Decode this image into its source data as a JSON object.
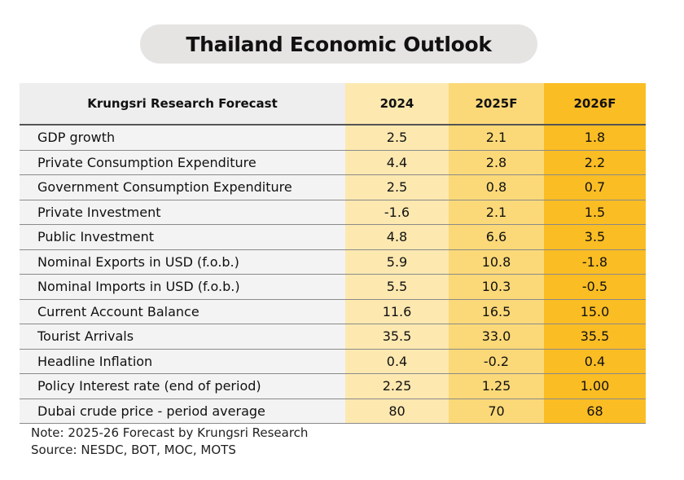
{
  "title": "Thailand Economic Outlook",
  "chart_data": {
    "type": "table",
    "columns": [
      "Krungsri Research Forecast",
      "2024",
      "2025F",
      "2026F"
    ],
    "rows": [
      [
        "GDP growth",
        "2.5",
        "2.1",
        "1.8"
      ],
      [
        "Private Consumption Expenditure",
        "4.4",
        "2.8",
        "2.2"
      ],
      [
        "Government Consumption Expenditure",
        "2.5",
        "0.8",
        "0.7"
      ],
      [
        "Private Investment",
        "-1.6",
        "2.1",
        "1.5"
      ],
      [
        "Public Investment",
        "4.8",
        "6.6",
        "3.5"
      ],
      [
        "Nominal Exports in USD (f.o.b.)",
        "5.9",
        "10.8",
        "-1.8"
      ],
      [
        "Nominal Imports in USD (f.o.b.)",
        "5.5",
        "10.3",
        "-0.5"
      ],
      [
        "Current Account Balance",
        "11.6",
        "16.5",
        "15.0"
      ],
      [
        "Tourist Arrivals",
        "35.5",
        "33.0",
        "35.5"
      ],
      [
        "Headline Inflation",
        "0.4",
        "-0.2",
        "0.4"
      ],
      [
        "Policy Interest rate (end of period)",
        "2.25",
        "1.25",
        "1.00"
      ],
      [
        "Dubai crude price - period average",
        "80",
        "70",
        "68"
      ]
    ],
    "column_colors": [
      "#efeeee",
      "#fde8b0",
      "#fcd978",
      "#fbbd24"
    ]
  },
  "notes": [
    "Note: 2025-26 Forecast by Krungsri Research",
    "Source: NESDC, BOT, MOC, MOTS"
  ]
}
